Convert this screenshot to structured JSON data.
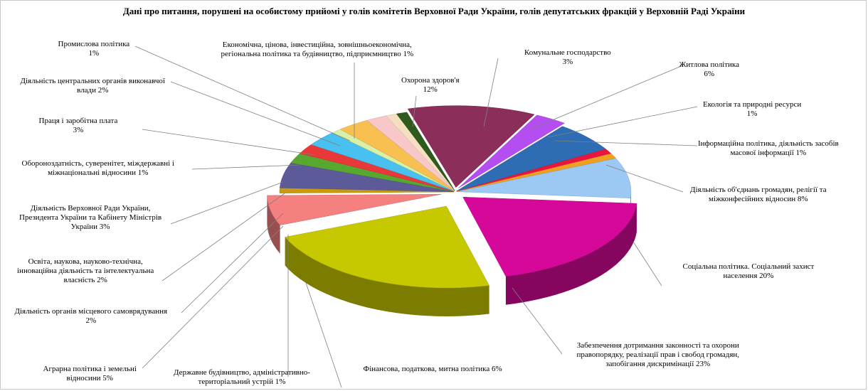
{
  "chart_data": {
    "type": "pie",
    "title": "Дані про питання, порушені на особистому прийомі у голів комітетів Верховної Ради України, голів депутатських фракцій  у Верховній Раді України",
    "slices": [
      {
        "label": "Охорона здоров'я",
        "value": 12,
        "value_label": "12%",
        "color": "#8B2F5A"
      },
      {
        "label": "Комунальне господарство",
        "value": 3,
        "value_label": "3%",
        "color": "#B54EF0"
      },
      {
        "label": "Житлова політика",
        "value": 6,
        "value_label": "6%",
        "color": "#2E6DB4"
      },
      {
        "label": "Екологія та природні ресурси",
        "value": 1,
        "value_label": "1%",
        "color": "#E8163C"
      },
      {
        "label": "Інформаційна політика, діяльність засобів масової інформації",
        "value": 1,
        "value_label": "1%",
        "color": "#F0A020"
      },
      {
        "label": "Діяльність об'єднань громадян, релігії та міжконфесійних відносин",
        "value": 8,
        "value_label": "8%",
        "color": "#9CC8F4"
      },
      {
        "label": "Соціальна політика. Соціальний захист населення",
        "value": 20,
        "value_label": "20%",
        "color": "#D6089A"
      },
      {
        "label": "Забезпечення дотримання законності та охорони правопорядку, реалізації прав і свобод громадян, запобігання дискримінації",
        "value": 23,
        "value_label": "23%",
        "color": "#C6C800"
      },
      {
        "label": "Фінансова, податкова, митна політика",
        "value": 6,
        "value_label": "6%",
        "color": "#F48080"
      },
      {
        "label": "Державне будівництво, адміністративно-територіальний устрій",
        "value": 1,
        "value_label": "1%",
        "color": "#C89A10"
      },
      {
        "label": "Аграрна політика і земельні відносини",
        "value": 5,
        "value_label": "5%",
        "color": "#5C5A98"
      },
      {
        "label": "Діяльність органів місцевого самоврядування",
        "value": 2,
        "value_label": "2%",
        "color": "#58A830"
      },
      {
        "label": "Освіта, наукова, науково-технічна, інноваційна діяльність та інтелектуальна власність",
        "value": 2,
        "value_label": "2%",
        "color": "#E83838"
      },
      {
        "label": "Діяльність Верховної Ради України, Президента України та Кабінету Міністрів України",
        "value": 3,
        "value_label": "3%",
        "color": "#48C0F0"
      },
      {
        "label": "Обороноздатність, суверенітет, міждержавні і міжнаціональні відносини",
        "value": 1,
        "value_label": "1%",
        "color": "#D8F0A8"
      },
      {
        "label": "Праця і заробітна плата",
        "value": 3,
        "value_label": "3%",
        "color": "#F8C050"
      },
      {
        "label": "Діяльність центральних органів виконавчої влади",
        "value": 2,
        "value_label": "2%",
        "color": "#F8C8C8"
      },
      {
        "label": "Промислова політика",
        "value": 1,
        "value_label": "1%",
        "color": "#F4E0C0"
      },
      {
        "label": "Економічна, цінова, інвестиційна, зовнішньоекономічна, регіональна політика та будівництво, підприємництво",
        "value": 1,
        "value_label": "1%",
        "color": "#2E5A1E"
      }
    ],
    "labels_text": [
      [
        "Охорона здоров'я",
        "12%"
      ],
      [
        "Комунальне господарство",
        "3%"
      ],
      [
        "Житлова політика",
        "6%"
      ],
      [
        "Екологія та природні ресурси",
        "1%"
      ],
      [
        "Інформаційна політика, діяльність засобів",
        "масової інформації  1%"
      ],
      [
        "Діяльність об'єднань громадян, релігії та",
        "міжконфесійних  відносин 8%"
      ],
      [
        "Соціальна політика.  Соціальний захист",
        "населення  20%"
      ],
      [
        "Забезпечення  дотримання законності  та охорони",
        "правопорядку, реалізації прав і свобод громадян,",
        "запобігання  дискримінації  23%"
      ],
      [
        "Фінансова,  податкова, митна  політика  6%"
      ],
      [
        "Державне будівництво, адміністративно-",
        "територіальний устрій 1%"
      ],
      [
        "Аграрна політика і земельні",
        "відносини  5%"
      ],
      [
        "Діяльність органів місцевого  самоврядування",
        "2%"
      ],
      [
        "Освіта, наукова, науково-технічна,",
        "інноваційна  діяльність та інтелектуальна",
        "власність 2%"
      ],
      [
        "Діяльність Верховної Ради України,",
        "Президента України та Кабінету Міністрів",
        "України 3%"
      ],
      [
        "Обороноздатність, суверенітет, міждержавні і",
        "міжнаціональні  відносини 1%"
      ],
      [
        "Праця і заробітна плата",
        "3%"
      ],
      [
        "Діяльність центральних  органів виконавчої",
        "влади 2%"
      ],
      [
        "Промислова політика",
        "1%"
      ],
      [
        "Економічна,  цінова, інвестиційна,  зовнішньоекономічна,",
        "регіональна політика та будівництво, підприємництво  1%"
      ]
    ]
  }
}
